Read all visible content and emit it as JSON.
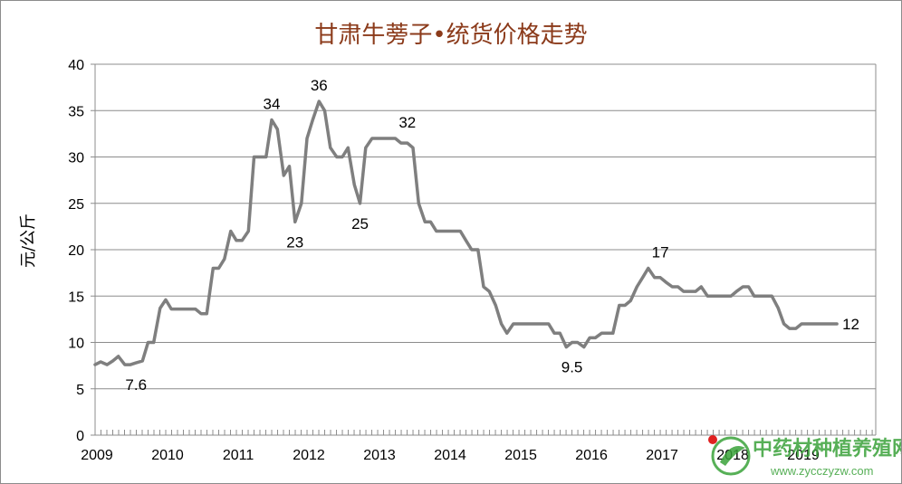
{
  "chart_data": {
    "type": "line",
    "title": "甘肃牛蒡子•统货价格走势",
    "ylabel": "元/公斤",
    "xlabel": "",
    "ylim": [
      0,
      40
    ],
    "yticks": [
      0,
      5,
      10,
      15,
      20,
      25,
      30,
      35,
      40
    ],
    "xlim": [
      2009,
      2020.05
    ],
    "xticks": [
      "2009",
      "2010",
      "2011",
      "2012",
      "2013",
      "2014",
      "2015",
      "2016",
      "2017",
      "2018",
      "2019"
    ],
    "grid": true,
    "line_color": "#7f7f7f",
    "series": [
      {
        "x": [
          2009.0,
          2009.08,
          2009.17,
          2009.25,
          2009.33,
          2009.42,
          2009.5,
          2009.58,
          2009.67,
          2009.75,
          2009.83,
          2009.92,
          2010.0,
          2010.08,
          2010.17,
          2010.25,
          2010.33,
          2010.42,
          2010.5,
          2010.58,
          2010.67,
          2010.75,
          2010.83,
          2010.92,
          2011.0,
          2011.08,
          2011.17,
          2011.25,
          2011.33,
          2011.42,
          2011.5,
          2011.58,
          2011.67,
          2011.75,
          2011.83,
          2011.92,
          2012.0,
          2012.08,
          2012.17,
          2012.25,
          2012.33,
          2012.42,
          2012.5,
          2012.58,
          2012.67,
          2012.75,
          2012.83,
          2012.92,
          2013.0,
          2013.08,
          2013.17,
          2013.25,
          2013.33,
          2013.42,
          2013.5,
          2013.58,
          2013.67,
          2013.75,
          2013.83,
          2013.92,
          2014.0,
          2014.08,
          2014.17,
          2014.25,
          2014.33,
          2014.42,
          2014.5,
          2014.58,
          2014.67,
          2014.75,
          2014.83,
          2014.92,
          2015.0,
          2015.08,
          2015.17,
          2015.25,
          2015.33,
          2015.42,
          2015.5,
          2015.58,
          2015.67,
          2015.75,
          2015.83,
          2015.92,
          2016.0,
          2016.08,
          2016.17,
          2016.25,
          2016.33,
          2016.42,
          2016.5,
          2016.58,
          2016.67,
          2016.75,
          2016.83,
          2016.92,
          2017.0,
          2017.08,
          2017.17,
          2017.25,
          2017.33,
          2017.42,
          2017.5,
          2017.58,
          2017.67,
          2017.75,
          2017.83,
          2017.92,
          2018.0,
          2018.08,
          2018.17,
          2018.25,
          2018.33,
          2018.42,
          2018.5,
          2018.58,
          2018.67,
          2018.75,
          2018.83,
          2018.92,
          2019.0,
          2019.08,
          2019.17,
          2019.25,
          2019.33,
          2019.42,
          2019.5
        ],
        "y": [
          7.6,
          7.9,
          7.6,
          8.0,
          8.5,
          7.6,
          7.6,
          7.8,
          8.0,
          10.0,
          10.0,
          13.7,
          14.6,
          13.6,
          13.6,
          13.6,
          13.6,
          13.6,
          13.1,
          13.1,
          18.0,
          18.0,
          19.0,
          22.0,
          21.0,
          21.0,
          22.0,
          30.0,
          30.0,
          30.0,
          34.0,
          33.0,
          28.0,
          29.0,
          23.0,
          25.0,
          32.0,
          34.0,
          36.0,
          35.0,
          31.0,
          30.0,
          30.0,
          31.0,
          27.0,
          25.0,
          31.0,
          32.0,
          32.0,
          32.0,
          32.0,
          32.0,
          31.5,
          31.5,
          31.0,
          25.0,
          23.0,
          23.0,
          22.0,
          22.0,
          22.0,
          22.0,
          22.0,
          21.0,
          20.0,
          20.0,
          16.0,
          15.5,
          14.0,
          12.0,
          11.0,
          12.0,
          12.0,
          12.0,
          12.0,
          12.0,
          12.0,
          12.0,
          11.0,
          11.0,
          9.5,
          10.0,
          10.0,
          9.5,
          10.5,
          10.5,
          11.0,
          11.0,
          11.0,
          14.0,
          14.0,
          14.5,
          16.0,
          17.0,
          18.0,
          17.0,
          17.0,
          16.5,
          16.0,
          16.0,
          15.5,
          15.5,
          15.5,
          16.0,
          15.0,
          15.0,
          15.0,
          15.0,
          15.0,
          15.5,
          16.0,
          16.0,
          15.0,
          15.0,
          15.0,
          15.0,
          13.7,
          12.0,
          11.5,
          11.5,
          12.0,
          12.0,
          12.0,
          12.0,
          12.0,
          12.0,
          12.0
        ]
      }
    ],
    "annotations": [
      {
        "text": "7.6",
        "x": 2009.58,
        "y": 7.6,
        "pos": "below"
      },
      {
        "text": "34",
        "x": 2011.5,
        "y": 34.0,
        "pos": "above"
      },
      {
        "text": "23",
        "x": 2011.83,
        "y": 23.0,
        "pos": "below"
      },
      {
        "text": "36",
        "x": 2012.17,
        "y": 36.0,
        "pos": "above"
      },
      {
        "text": "25",
        "x": 2012.75,
        "y": 25.0,
        "pos": "below"
      },
      {
        "text": "32",
        "x": 2013.42,
        "y": 32.0,
        "pos": "above"
      },
      {
        "text": "9.5",
        "x": 2015.75,
        "y": 9.5,
        "pos": "below"
      },
      {
        "text": "17",
        "x": 2017.0,
        "y": 18.0,
        "pos": "above"
      },
      {
        "text": "12",
        "x": 2019.5,
        "y": 12.0,
        "pos": "right"
      }
    ]
  },
  "watermark": {
    "text": "中药材种植养殖网",
    "url": "www.zycczyzw.com"
  }
}
